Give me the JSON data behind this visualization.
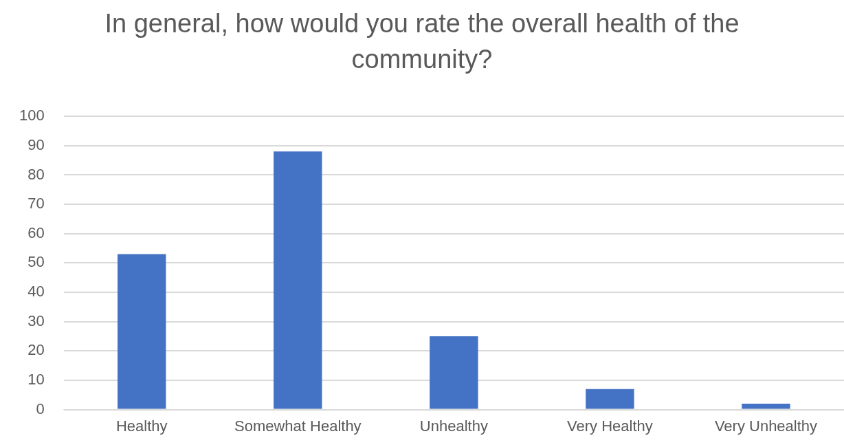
{
  "chart_data": {
    "type": "bar",
    "title": "In general, how would you rate the overall health of the community?",
    "categories": [
      "Healthy",
      "Somewhat Healthy",
      "Unhealthy",
      "Very Healthy",
      "Very Unhealthy"
    ],
    "values": [
      53,
      88,
      25,
      7,
      2
    ],
    "color": "#4472c4",
    "ylim": [
      0,
      100
    ],
    "yticks": [
      0,
      10,
      20,
      30,
      40,
      50,
      60,
      70,
      80,
      90,
      100
    ],
    "grid": "y"
  }
}
